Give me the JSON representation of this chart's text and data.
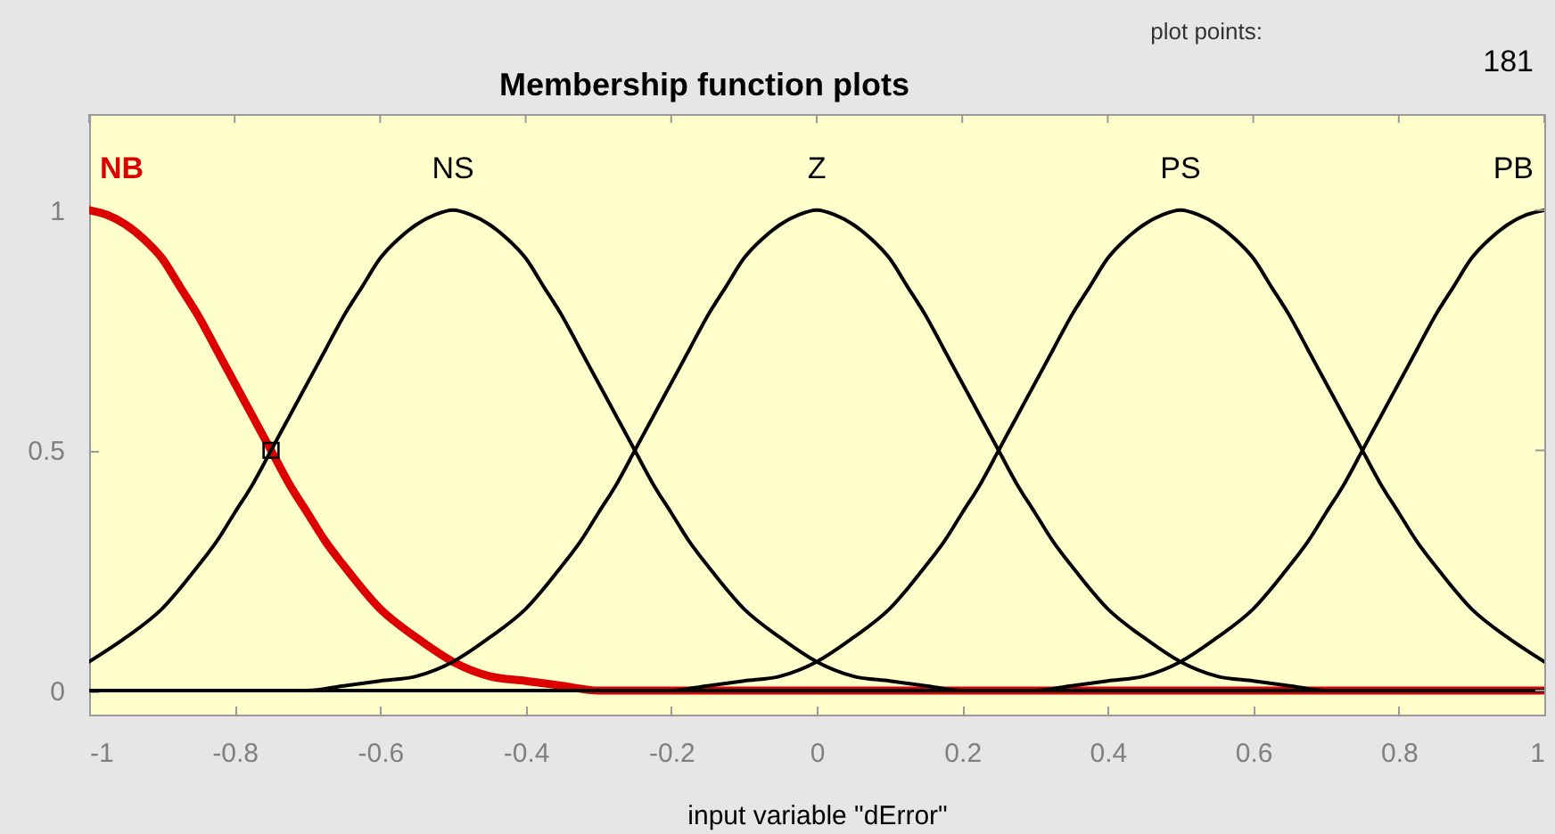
{
  "chart_data": {
    "type": "line",
    "title": "Membership function plots",
    "xlabel": "input variable \"dError\"",
    "annotations": [
      "plot points:",
      "181"
    ],
    "series": [
      {
        "name": "NB",
        "color": "#dd0000",
        "x": [
          -1,
          -0.975,
          -0.95,
          -0.925,
          -0.9,
          -0.875,
          -0.85,
          -0.825,
          -0.8,
          -0.775,
          -0.75,
          -0.725,
          -0.7,
          -0.675,
          -0.65,
          -0.6,
          -0.55,
          -0.5,
          -0.45,
          -0.4,
          -0.35,
          -0.3,
          1
        ],
        "values": [
          1,
          0.99,
          0.97,
          0.94,
          0.9,
          0.84,
          0.78,
          0.71,
          0.64,
          0.57,
          0.5,
          0.43,
          0.37,
          0.31,
          0.26,
          0.17,
          0.11,
          0.06,
          0.03,
          0.02,
          0.01,
          0,
          0
        ]
      },
      {
        "name": "NS",
        "color": "#000000",
        "x": [
          -1,
          -0.95,
          -0.9,
          -0.85,
          -0.825,
          -0.8,
          -0.775,
          -0.75,
          -0.725,
          -0.7,
          -0.675,
          -0.65,
          -0.625,
          -0.6,
          -0.575,
          -0.55,
          -0.525,
          -0.5,
          -0.475,
          -0.45,
          -0.425,
          -0.4,
          -0.375,
          -0.35,
          -0.325,
          -0.3,
          -0.275,
          -0.25,
          -0.225,
          -0.2,
          -0.175,
          -0.15,
          -0.1,
          -0.05,
          0,
          0.05,
          0.1,
          0.15,
          0.2,
          1
        ],
        "values": [
          0.06,
          0.11,
          0.17,
          0.26,
          0.31,
          0.37,
          0.43,
          0.5,
          0.57,
          0.64,
          0.71,
          0.78,
          0.84,
          0.9,
          0.94,
          0.97,
          0.99,
          1,
          0.99,
          0.97,
          0.94,
          0.9,
          0.84,
          0.78,
          0.71,
          0.64,
          0.57,
          0.5,
          0.43,
          0.37,
          0.31,
          0.26,
          0.17,
          0.11,
          0.06,
          0.03,
          0.02,
          0.01,
          0,
          0
        ]
      },
      {
        "name": "Z",
        "color": "#000000",
        "x": [
          -1,
          -0.7,
          -0.65,
          -0.6,
          -0.55,
          -0.5,
          -0.45,
          -0.4,
          -0.35,
          -0.325,
          -0.3,
          -0.275,
          -0.25,
          -0.225,
          -0.2,
          -0.175,
          -0.15,
          -0.125,
          -0.1,
          -0.075,
          -0.05,
          -0.025,
          0,
          0.025,
          0.05,
          0.075,
          0.1,
          0.125,
          0.15,
          0.175,
          0.2,
          0.225,
          0.25,
          0.275,
          0.3,
          0.325,
          0.35,
          0.4,
          0.45,
          0.5,
          0.55,
          0.6,
          0.65,
          0.7,
          1
        ],
        "values": [
          0,
          0,
          0.01,
          0.02,
          0.03,
          0.06,
          0.11,
          0.17,
          0.26,
          0.31,
          0.37,
          0.43,
          0.5,
          0.57,
          0.64,
          0.71,
          0.78,
          0.84,
          0.9,
          0.94,
          0.97,
          0.99,
          1,
          0.99,
          0.97,
          0.94,
          0.9,
          0.84,
          0.78,
          0.71,
          0.64,
          0.57,
          0.5,
          0.43,
          0.37,
          0.31,
          0.26,
          0.17,
          0.11,
          0.06,
          0.03,
          0.02,
          0.01,
          0,
          0
        ]
      },
      {
        "name": "PS",
        "color": "#000000",
        "x": [
          -1,
          -0.2,
          -0.15,
          -0.1,
          -0.05,
          0,
          0.05,
          0.1,
          0.15,
          0.175,
          0.2,
          0.225,
          0.25,
          0.275,
          0.3,
          0.325,
          0.35,
          0.375,
          0.4,
          0.425,
          0.45,
          0.475,
          0.5,
          0.525,
          0.55,
          0.575,
          0.6,
          0.625,
          0.65,
          0.675,
          0.7,
          0.725,
          0.75,
          0.775,
          0.8,
          0.825,
          0.85,
          0.9,
          0.95,
          1
        ],
        "values": [
          0,
          0,
          0.01,
          0.02,
          0.03,
          0.06,
          0.11,
          0.17,
          0.26,
          0.31,
          0.37,
          0.43,
          0.5,
          0.57,
          0.64,
          0.71,
          0.78,
          0.84,
          0.9,
          0.94,
          0.97,
          0.99,
          1,
          0.99,
          0.97,
          0.94,
          0.9,
          0.84,
          0.78,
          0.71,
          0.64,
          0.57,
          0.5,
          0.43,
          0.37,
          0.31,
          0.26,
          0.17,
          0.11,
          0.06
        ]
      },
      {
        "name": "PB",
        "color": "#000000",
        "x": [
          -1,
          0.3,
          0.35,
          0.4,
          0.45,
          0.5,
          0.55,
          0.6,
          0.65,
          0.675,
          0.7,
          0.725,
          0.75,
          0.775,
          0.8,
          0.825,
          0.85,
          0.875,
          0.9,
          0.925,
          0.95,
          0.975,
          1
        ],
        "values": [
          0,
          0,
          0.01,
          0.02,
          0.03,
          0.06,
          0.11,
          0.17,
          0.26,
          0.31,
          0.37,
          0.43,
          0.5,
          0.57,
          0.64,
          0.71,
          0.78,
          0.84,
          0.9,
          0.94,
          0.97,
          0.99,
          1
        ]
      },
      {
        "type": "scatter",
        "x": [
          -0.75
        ],
        "values": [
          0.5
        ],
        "color": "#000000",
        "marker": "square"
      }
    ],
    "xlim": [
      -1,
      1
    ],
    "ylim": [
      -0.05,
      1.2
    ],
    "xticks": [
      -1,
      -0.8,
      -0.6,
      -0.4,
      -0.2,
      0,
      0.2,
      0.4,
      0.6,
      0.8,
      1
    ],
    "yticks": [
      0,
      0.5,
      1
    ]
  }
}
